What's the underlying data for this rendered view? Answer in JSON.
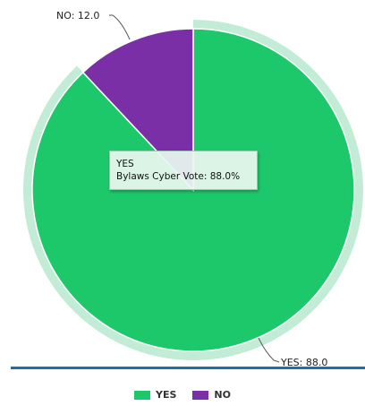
{
  "chart_data": {
    "type": "pie",
    "title": "",
    "slices": [
      {
        "label": "YES",
        "value": 88.0,
        "value_text": "YES: 88.0",
        "color": "#1dc86a"
      },
      {
        "label": "NO",
        "value": 12.0,
        "value_text": "NO: 12.0",
        "color": "#7a2fa6"
      }
    ],
    "highlighted_slice": "YES",
    "legend": {
      "position": "bottom",
      "items": [
        {
          "label": "YES",
          "color": "#1dc86a"
        },
        {
          "label": "NO",
          "color": "#7a2fa6"
        }
      ]
    }
  },
  "tooltip": {
    "title": "YES",
    "line": "Bylaws Cyber Vote: 88.0%"
  },
  "colors": {
    "highlight_ring": "#c3ecd6",
    "rule": "#1a6fb3"
  }
}
